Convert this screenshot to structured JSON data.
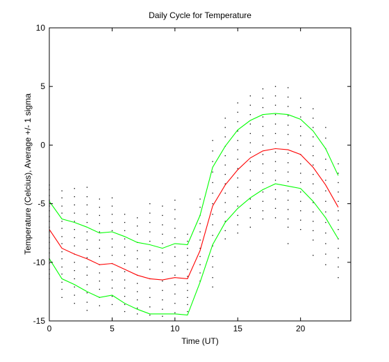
{
  "chart_data": {
    "type": "line",
    "title": "Daily Cycle for Temperature",
    "xlabel": "Time (UT)",
    "ylabel": "Temperature (Celcius), Average +/- 1 sigma",
    "xlim": [
      0,
      24
    ],
    "ylim": [
      -15,
      10
    ],
    "xticks": [
      0,
      5,
      10,
      15,
      20
    ],
    "yticks": [
      -15,
      -10,
      -5,
      0,
      5,
      10
    ],
    "grid": false,
    "x": [
      0,
      1,
      2,
      3,
      4,
      5,
      6,
      7,
      8,
      9,
      10,
      11,
      12,
      13,
      14,
      15,
      16,
      17,
      18,
      19,
      20,
      21,
      22,
      23
    ],
    "series": [
      {
        "role": "average",
        "color": "#ff0000",
        "values": [
          -7.2,
          -8.8,
          -9.3,
          -9.7,
          -10.2,
          -10.1,
          -10.6,
          -11.1,
          -11.4,
          -11.5,
          -11.3,
          -11.4,
          -9.0,
          -5.2,
          -3.4,
          -2.1,
          -1.1,
          -0.5,
          -0.3,
          -0.4,
          -0.8,
          -1.9,
          -3.4,
          -5.3
        ]
      },
      {
        "role": "plus-1-sigma",
        "color": "#00ff00",
        "values": [
          -4.8,
          -6.3,
          -6.6,
          -7.0,
          -7.5,
          -7.4,
          -7.8,
          -8.3,
          -8.5,
          -8.8,
          -8.4,
          -8.5,
          -6.0,
          -1.9,
          -0.1,
          1.3,
          2.1,
          2.6,
          2.7,
          2.6,
          2.2,
          1.2,
          -0.3,
          -2.6
        ]
      },
      {
        "role": "minus-1-sigma",
        "color": "#00ff00",
        "values": [
          -9.7,
          -11.4,
          -11.9,
          -12.5,
          -13.0,
          -12.8,
          -13.5,
          -14.0,
          -14.4,
          -14.4,
          -14.4,
          -14.5,
          -11.7,
          -8.5,
          -6.6,
          -5.4,
          -4.5,
          -3.8,
          -3.3,
          -3.5,
          -3.7,
          -4.8,
          -6.2,
          -8.0
        ]
      }
    ],
    "scatter": {
      "color": "#000000",
      "marker": "dot",
      "columns": [
        {
          "x": 0,
          "y": [
            -3.4,
            -3.8,
            -4.3,
            -4.7,
            -5.2,
            -5.6,
            -6.1,
            -6.5,
            -7.0,
            -7.4,
            -7.9,
            -8.3,
            -8.8,
            -9.2,
            -9.7,
            -10.1,
            -10.6,
            -11.0,
            -11.4
          ]
        },
        {
          "x": 1,
          "y": [
            -3.9,
            -4.5,
            -5.2,
            -5.8,
            -6.5,
            -7.1,
            -7.8,
            -8.4,
            -9.1,
            -9.7,
            -10.4,
            -11.0,
            -11.7,
            -12.3,
            -13.0
          ]
        },
        {
          "x": 2,
          "y": [
            -3.7,
            -4.4,
            -5.1,
            -5.8,
            -6.5,
            -7.2,
            -7.9,
            -8.6,
            -9.3,
            -10.0,
            -10.7,
            -11.4,
            -12.1,
            -12.8,
            -13.5
          ]
        },
        {
          "x": 3,
          "y": [
            -3.6,
            -4.4,
            -5.1,
            -5.9,
            -6.6,
            -7.4,
            -8.1,
            -8.9,
            -9.6,
            -10.4,
            -11.1,
            -11.9,
            -12.6,
            -13.4,
            -14.1
          ]
        },
        {
          "x": 4,
          "y": [
            -4.6,
            -5.3,
            -6.0,
            -6.7,
            -7.4,
            -8.1,
            -8.8,
            -9.5,
            -10.2,
            -10.9,
            -11.6,
            -12.3,
            -13.0,
            -13.7
          ]
        },
        {
          "x": 5,
          "y": [
            -4.5,
            -5.2,
            -5.9,
            -6.6,
            -7.3,
            -8.0,
            -8.7,
            -9.4,
            -10.1,
            -10.8,
            -11.5,
            -12.2,
            -12.9,
            -13.6
          ]
        },
        {
          "x": 6,
          "y": [
            -5.9,
            -6.6,
            -7.3,
            -8.0,
            -8.7,
            -9.4,
            -10.1,
            -10.8,
            -11.5,
            -12.2,
            -12.9,
            -13.6,
            -14.2
          ]
        },
        {
          "x": 7,
          "y": [
            -6.2,
            -6.9,
            -7.6,
            -8.3,
            -9.0,
            -9.7,
            -10.4,
            -11.1,
            -11.8,
            -12.5,
            -13.2,
            -13.9,
            -14.4
          ]
        },
        {
          "x": 8,
          "y": [
            -5.0,
            -5.8,
            -6.6,
            -7.4,
            -8.2,
            -9.0,
            -9.8,
            -10.6,
            -11.4,
            -12.2,
            -13.0,
            -13.8,
            -14.5
          ]
        },
        {
          "x": 9,
          "y": [
            -5.2,
            -6.0,
            -6.8,
            -7.6,
            -8.4,
            -9.2,
            -10.0,
            -10.8,
            -11.6,
            -12.4,
            -13.2,
            -14.0,
            -14.6
          ]
        },
        {
          "x": 10,
          "y": [
            -4.7,
            -5.5,
            -6.3,
            -7.1,
            -7.9,
            -8.7,
            -9.5,
            -10.3,
            -11.1,
            -11.9,
            -12.7,
            -13.5,
            -14.3
          ]
        },
        {
          "x": 11,
          "y": [
            -7.6,
            -8.2,
            -8.8,
            -9.4,
            -10.0,
            -10.6,
            -11.2,
            -11.8,
            -12.4,
            -13.0,
            -13.6,
            -14.2
          ]
        },
        {
          "x": 12,
          "y": [
            -4.6,
            -5.3,
            -6.0,
            -6.7,
            -7.4,
            -8.1,
            -8.8,
            -9.5,
            -10.2,
            -10.9,
            -11.6
          ]
        },
        {
          "x": 13,
          "y": [
            0.4,
            -0.5,
            -1.4,
            -2.3,
            -3.2,
            -4.1,
            -5.0,
            -5.9,
            -6.8,
            -7.7,
            -8.6,
            -9.5,
            -10.4,
            -11.3,
            -12.1
          ]
        },
        {
          "x": 14,
          "y": [
            2.3,
            1.5,
            0.7,
            -0.1,
            -0.9,
            -1.7,
            -2.5,
            -3.3,
            -4.1,
            -4.9,
            -5.7,
            -6.5,
            -7.3,
            -8.0
          ]
        },
        {
          "x": 15,
          "y": [
            3.6,
            2.8,
            2.0,
            1.2,
            0.4,
            -0.4,
            -1.2,
            -2.0,
            -2.8,
            -3.6,
            -4.4,
            -5.2,
            -6.0,
            -6.8,
            -7.5
          ]
        },
        {
          "x": 16,
          "y": [
            4.2,
            3.4,
            2.6,
            1.8,
            1.0,
            0.2,
            -0.6,
            -1.4,
            -2.2,
            -3.0,
            -3.8,
            -4.6,
            -5.4,
            -6.2,
            -7.0
          ]
        },
        {
          "x": 17,
          "y": [
            4.8,
            4.0,
            3.2,
            2.4,
            1.6,
            0.8,
            0.0,
            -0.8,
            -1.6,
            -2.4,
            -3.2,
            -4.0,
            -4.8,
            -5.6,
            -6.3
          ]
        },
        {
          "x": 18,
          "y": [
            5.0,
            4.2,
            3.4,
            2.6,
            1.8,
            1.0,
            0.2,
            -0.6,
            -1.4,
            -2.2,
            -3.0,
            -3.8,
            -4.6,
            -5.4,
            -6.2
          ]
        },
        {
          "x": 19,
          "y": [
            4.9,
            4.1,
            3.3,
            2.5,
            1.7,
            0.9,
            0.1,
            -0.7,
            -1.5,
            -2.3,
            -3.1,
            -3.9,
            -4.7,
            -5.5,
            -6.3,
            -7.0,
            -8.4
          ]
        },
        {
          "x": 20,
          "y": [
            4.0,
            3.2,
            2.4,
            1.6,
            0.8,
            0.0,
            -0.8,
            -1.6,
            -2.4,
            -3.2,
            -4.0,
            -4.8,
            -5.6,
            -6.4,
            -7.2
          ]
        },
        {
          "x": 21,
          "y": [
            3.1,
            2.3,
            1.5,
            0.7,
            -0.1,
            -0.9,
            -1.7,
            -2.5,
            -3.3,
            -4.1,
            -4.9,
            -5.7,
            -6.5,
            -7.3,
            -8.1,
            -9.4
          ]
        },
        {
          "x": 22,
          "y": [
            1.5,
            0.6,
            -0.3,
            -1.2,
            -2.1,
            -3.0,
            -3.9,
            -4.8,
            -5.7,
            -6.6,
            -7.5,
            -8.4,
            -9.3,
            -10.2
          ]
        },
        {
          "x": 23,
          "y": [
            -1.6,
            -2.4,
            -3.2,
            -4.0,
            -4.8,
            -5.6,
            -6.4,
            -7.2,
            -8.0,
            -8.8,
            -9.6,
            -10.4,
            -11.3
          ]
        }
      ]
    }
  }
}
